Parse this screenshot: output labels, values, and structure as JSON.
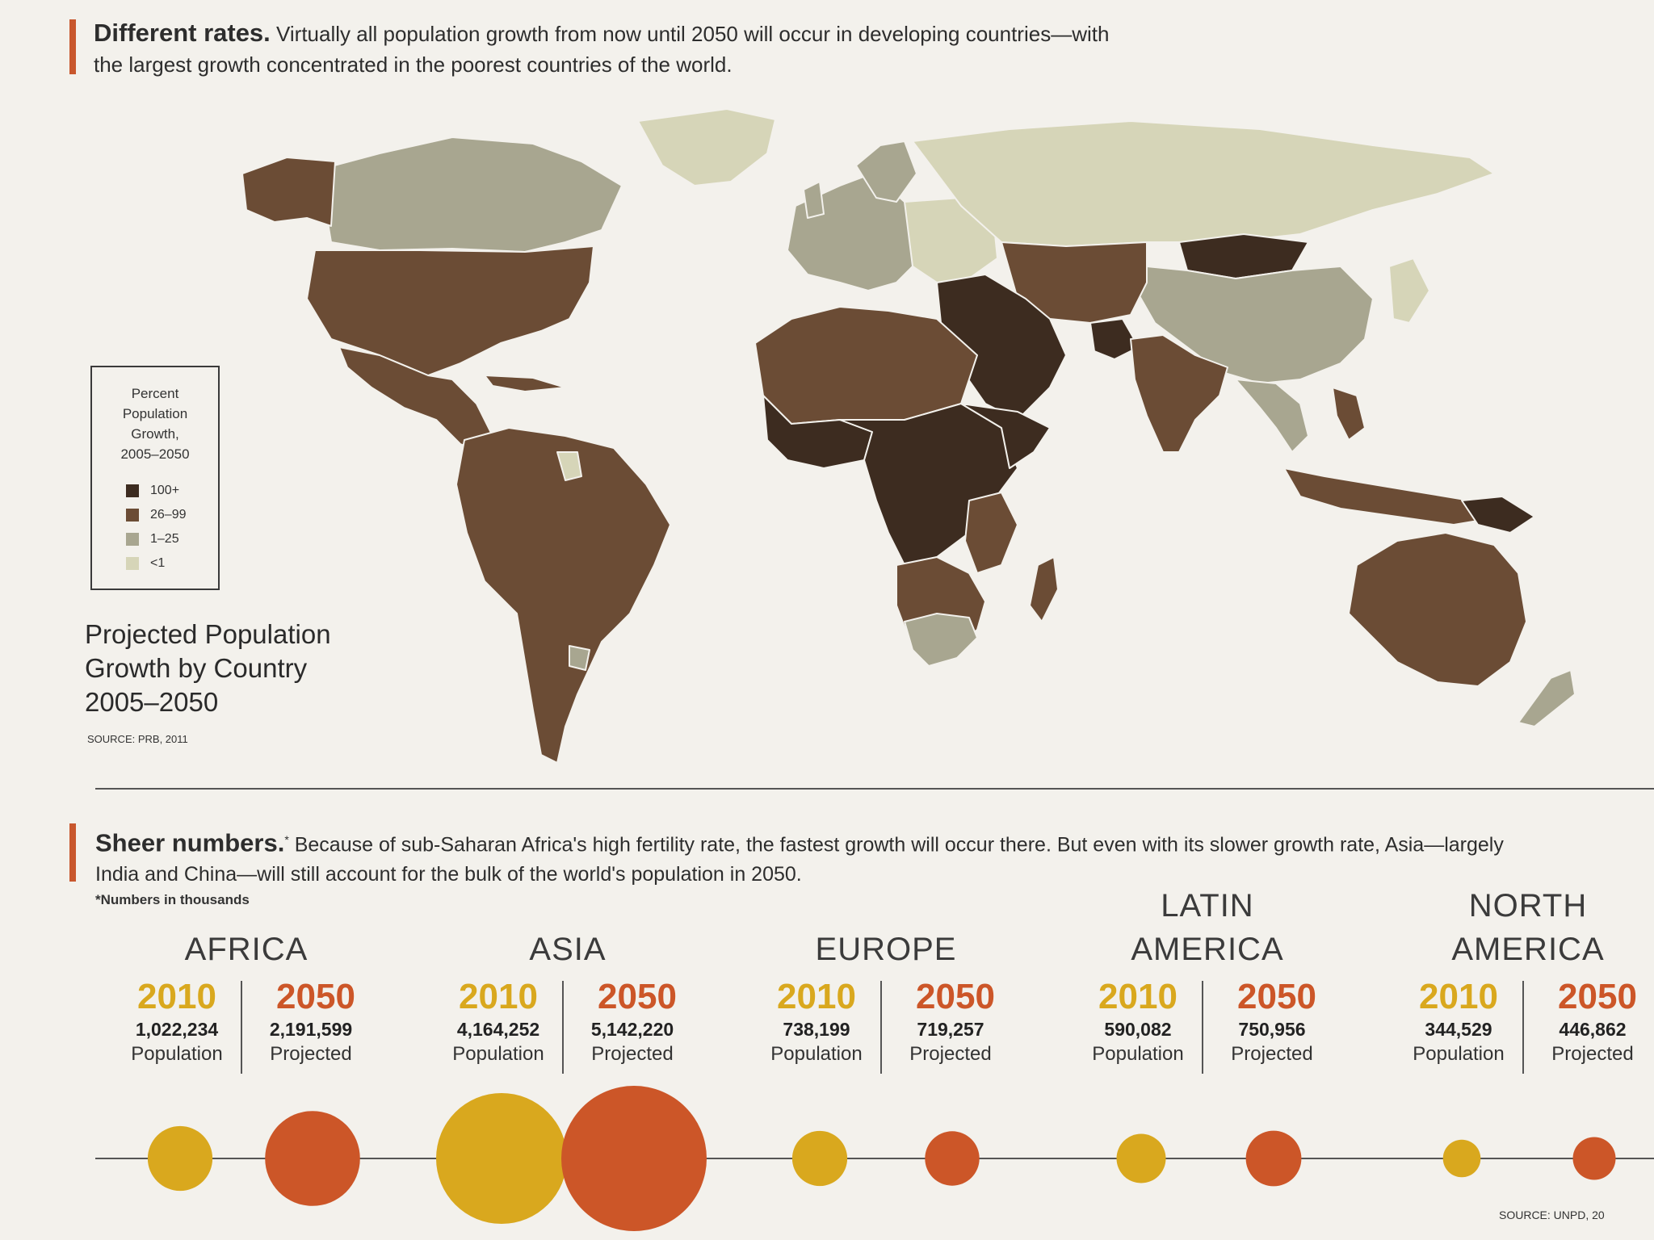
{
  "header1": {
    "title": "Different rates.",
    "text": "Virtually all population growth from now until 2050 will occur in developing countries—with the largest growth concentrated in the poorest countries of the world."
  },
  "map": {
    "title_lines": [
      "Projected Population",
      "Growth by Country",
      "2005–2050"
    ],
    "source": "SOURCE: PRB, 2011",
    "legend": {
      "title_lines": [
        "Percent",
        "Population",
        "Growth,",
        "2005–2050"
      ],
      "items": [
        {
          "label": "100+",
          "color": "#3d2c20"
        },
        {
          "label": "26–99",
          "color": "#6b4c35"
        },
        {
          "label": "1–25",
          "color": "#a8a690"
        },
        {
          "label": "<1",
          "color": "#d6d5b8"
        }
      ]
    }
  },
  "header2": {
    "title": "Sheer numbers.",
    "title_mark": "*",
    "text": "Because of sub-Saharan Africa's high fertility rate, the fastest growth will occur there. But even with its slower growth rate, Asia—largely India and China—will still account for the bulk of the world's population in 2050.",
    "footnote": "*Numbers in thousands"
  },
  "bottom_source": "SOURCE: UNPD, 20",
  "colors": {
    "y2010": "#d9a81e",
    "y2050": "#cc5628",
    "accent": "#c8572d"
  },
  "chart_data": {
    "type": "bubble",
    "unit": "thousands",
    "years": [
      "2010",
      "2050"
    ],
    "labels": [
      "Population",
      "Projected"
    ],
    "regions": [
      {
        "name_lines": [
          "AFRICA"
        ],
        "y2010": 1022234,
        "y2050": 2191599,
        "y2010_label": "1,022,234",
        "y2050_label": "2,191,599"
      },
      {
        "name_lines": [
          "ASIA"
        ],
        "y2010": 4164252,
        "y2050": 5142220,
        "y2010_label": "4,164,252",
        "y2050_label": "5,142,220"
      },
      {
        "name_lines": [
          "EUROPE"
        ],
        "y2010": 738199,
        "y2050": 719257,
        "y2010_label": "738,199",
        "y2050_label": "719,257"
      },
      {
        "name_lines": [
          "LATIN",
          "AMERICA"
        ],
        "y2010": 590082,
        "y2050": 750956,
        "y2010_label": "590,082",
        "y2050_label": "750,956"
      },
      {
        "name_lines": [
          "NORTH",
          "AMERICA"
        ],
        "y2010": 344529,
        "y2050": 446862,
        "y2010_label": "344,529",
        "y2050_label": "446,862"
      }
    ]
  }
}
